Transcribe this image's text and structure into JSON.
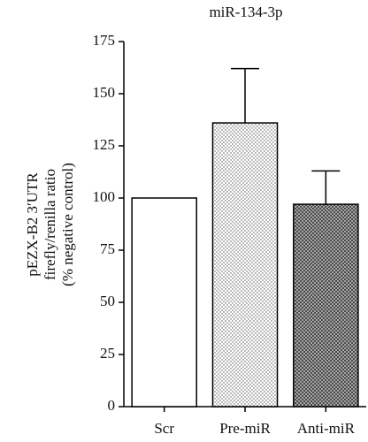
{
  "chart_data": {
    "type": "bar",
    "title": "miR-134-3p",
    "ylabel": [
      "pEZX-B2 3′UTR",
      "firefly/renilla ratio",
      "(% negative control)"
    ],
    "categories": [
      "Scr",
      "Pre-miR",
      "Anti-miR"
    ],
    "values": [
      100,
      136,
      97
    ],
    "errors": [
      null,
      26,
      16
    ],
    "fills": [
      "plain",
      "dots",
      "crosshatch"
    ],
    "ylim": [
      0,
      175
    ],
    "yticks": [
      0,
      25,
      50,
      75,
      100,
      125,
      150,
      175
    ]
  }
}
